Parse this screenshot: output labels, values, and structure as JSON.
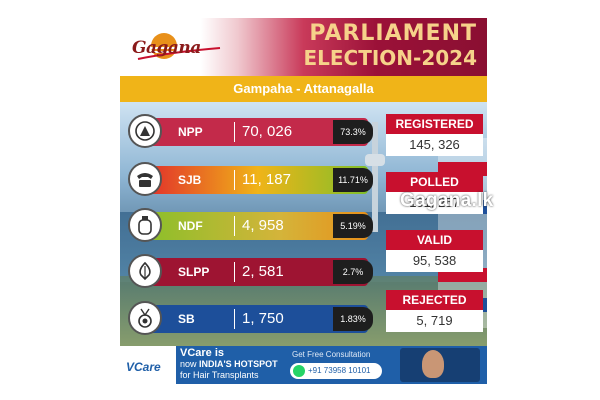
{
  "header": {
    "logo_text": "Gagana",
    "title_line1": "PARLIAMENT",
    "title_line2": "ELECTION-2024",
    "subtitle": "Gampaha - Attanagalla"
  },
  "results": [
    {
      "party": "NPP",
      "votes": "70, 026",
      "percent": "73.3%",
      "color": "#c32a4a",
      "icon": "compass-icon"
    },
    {
      "party": "SJB",
      "votes": "11, 187",
      "percent": "11.71%",
      "color": "#8cbf2a",
      "icon": "telephone-icon"
    },
    {
      "party": "NDF",
      "votes": "4, 958",
      "percent": "5.19%",
      "color": "#c9b43a",
      "icon": "gas-cylinder-icon"
    },
    {
      "party": "SLPP",
      "votes": "2, 581",
      "percent": "2.7%",
      "color": "#9e1432",
      "icon": "flower-bud-icon"
    },
    {
      "party": "SB",
      "votes": "1, 750",
      "percent": "1.83%",
      "color": "#1d4f9a",
      "icon": "medal-icon"
    }
  ],
  "stats": [
    {
      "label": "REGISTERED",
      "value": "145, 326"
    },
    {
      "label": "POLLED",
      "value": "101, 257"
    },
    {
      "label": "VALID",
      "value": "95, 538"
    },
    {
      "label": "REJECTED",
      "value": "5, 719"
    }
  ],
  "watermark": "Gagana.lk",
  "ad": {
    "brand": "VCare",
    "line1": "VCare is",
    "line2_prefix": "now ",
    "line2_bold": "INDIA'S HOTSPOT",
    "line3": "for Hair Transplants",
    "consult": "Get Free Consultation",
    "phone": "+91 73958 10101"
  }
}
